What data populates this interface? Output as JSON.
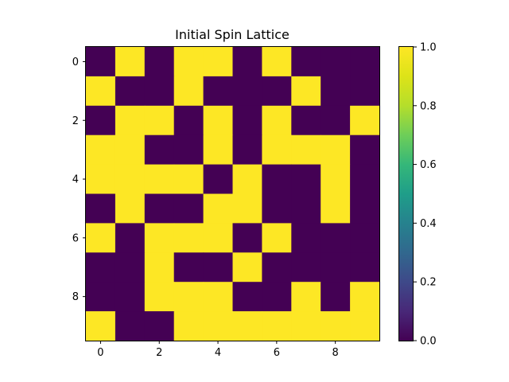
{
  "chart_data": {
    "type": "heatmap",
    "title": "Initial Spin Lattice",
    "xlabel": "",
    "ylabel": "",
    "rows": 10,
    "cols": 10,
    "values": [
      [
        0,
        1,
        0,
        1,
        1,
        0,
        1,
        0,
        0,
        0
      ],
      [
        1,
        0,
        0,
        1,
        0,
        0,
        0,
        1,
        0,
        0
      ],
      [
        0,
        1,
        1,
        0,
        1,
        0,
        1,
        0,
        0,
        1
      ],
      [
        1,
        1,
        0,
        0,
        1,
        0,
        1,
        1,
        1,
        0
      ],
      [
        1,
        1,
        1,
        1,
        0,
        1,
        0,
        0,
        1,
        0
      ],
      [
        0,
        1,
        0,
        0,
        1,
        1,
        0,
        0,
        1,
        0
      ],
      [
        1,
        0,
        1,
        1,
        1,
        0,
        1,
        0,
        0,
        0
      ],
      [
        0,
        0,
        1,
        0,
        0,
        1,
        0,
        0,
        0,
        0
      ],
      [
        0,
        0,
        1,
        1,
        1,
        0,
        0,
        1,
        0,
        1
      ],
      [
        1,
        0,
        0,
        1,
        1,
        1,
        1,
        1,
        1,
        1
      ]
    ],
    "x_ticks": [
      "0",
      "2",
      "4",
      "6",
      "8"
    ],
    "y_ticks": [
      "0",
      "2",
      "4",
      "6",
      "8"
    ],
    "x_tick_values": [
      0,
      2,
      4,
      6,
      8
    ],
    "y_tick_values": [
      0,
      2,
      4,
      6,
      8
    ],
    "colormap": "viridis",
    "color_low": "#440154",
    "color_high": "#fde725",
    "colorbar": {
      "range": [
        0.0,
        1.0
      ],
      "ticks": [
        "0.0",
        "0.2",
        "0.4",
        "0.6",
        "0.8",
        "1.0"
      ],
      "tick_values": [
        0.0,
        0.2,
        0.4,
        0.6,
        0.8,
        1.0
      ]
    },
    "grid": false
  }
}
